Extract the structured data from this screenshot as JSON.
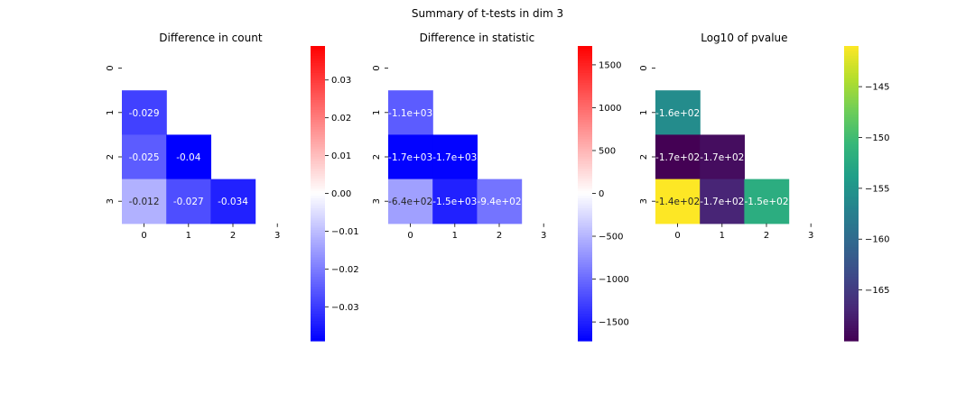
{
  "suptitle": "Summary of t-tests in dim 3",
  "chart_data": [
    {
      "type": "heatmap",
      "title": "Difference in count",
      "xlabel": "",
      "ylabel": "",
      "x_ticks": [
        "0",
        "1",
        "2",
        "3"
      ],
      "y_ticks": [
        "0",
        "1",
        "2",
        "3"
      ],
      "mask": "upper triangle and diagonal (empty)",
      "cells": [
        {
          "row": 1,
          "col": 0,
          "value": -0.029,
          "label": "-0.029"
        },
        {
          "row": 2,
          "col": 0,
          "value": -0.025,
          "label": "-0.025"
        },
        {
          "row": 2,
          "col": 1,
          "value": -0.04,
          "label": "-0.04"
        },
        {
          "row": 3,
          "col": 0,
          "value": -0.012,
          "label": "-0.012"
        },
        {
          "row": 3,
          "col": 1,
          "value": -0.027,
          "label": "-0.027"
        },
        {
          "row": 3,
          "col": 2,
          "value": -0.034,
          "label": "-0.034"
        }
      ],
      "colormap": "bwr",
      "vmin": -0.039,
      "vmax": 0.039,
      "colorbar_ticks": [
        {
          "value": 0.03,
          "label": "0.03"
        },
        {
          "value": 0.02,
          "label": "0.02"
        },
        {
          "value": 0.01,
          "label": "0.01"
        },
        {
          "value": 0.0,
          "label": "0.00"
        },
        {
          "value": -0.01,
          "label": "−0.01"
        },
        {
          "value": -0.02,
          "label": "−0.02"
        },
        {
          "value": -0.03,
          "label": "−0.03"
        }
      ]
    },
    {
      "type": "heatmap",
      "title": "Difference in statistic",
      "xlabel": "",
      "ylabel": "",
      "x_ticks": [
        "0",
        "1",
        "2",
        "3"
      ],
      "y_ticks": [
        "0",
        "1",
        "2",
        "3"
      ],
      "mask": "upper triangle and diagonal (empty)",
      "cells": [
        {
          "row": 1,
          "col": 0,
          "value": -1100,
          "label": "-1.1e+03"
        },
        {
          "row": 2,
          "col": 0,
          "value": -1700,
          "label": "-1.7e+03"
        },
        {
          "row": 2,
          "col": 1,
          "value": -1700,
          "label": "-1.7e+03"
        },
        {
          "row": 3,
          "col": 0,
          "value": -640,
          "label": "-6.4e+02"
        },
        {
          "row": 3,
          "col": 1,
          "value": -1500,
          "label": "-1.5e+03"
        },
        {
          "row": 3,
          "col": 2,
          "value": -940,
          "label": "-9.4e+02"
        }
      ],
      "colormap": "bwr",
      "vmin": -1720,
      "vmax": 1720,
      "colorbar_ticks": [
        {
          "value": 1500,
          "label": "1500"
        },
        {
          "value": 1000,
          "label": "1000"
        },
        {
          "value": 500,
          "label": "500"
        },
        {
          "value": 0,
          "label": "0"
        },
        {
          "value": -500,
          "label": "−500"
        },
        {
          "value": -1000,
          "label": "−1000"
        },
        {
          "value": -1500,
          "label": "−1500"
        }
      ]
    },
    {
      "type": "heatmap",
      "title": "Log10 of pvalue",
      "xlabel": "",
      "ylabel": "",
      "x_ticks": [
        "0",
        "1",
        "2",
        "3"
      ],
      "y_ticks": [
        "0",
        "1",
        "2",
        "3"
      ],
      "mask": "upper triangle and diagonal (empty)",
      "cells": [
        {
          "row": 1,
          "col": 0,
          "value": -156,
          "label": "-1.6e+02"
        },
        {
          "row": 2,
          "col": 0,
          "value": -170,
          "label": "-1.7e+02"
        },
        {
          "row": 2,
          "col": 1,
          "value": -169,
          "label": "-1.7e+02"
        },
        {
          "row": 3,
          "col": 0,
          "value": -141,
          "label": "-1.4e+02"
        },
        {
          "row": 3,
          "col": 1,
          "value": -167,
          "label": "-1.7e+02"
        },
        {
          "row": 3,
          "col": 2,
          "value": -152,
          "label": "-1.5e+02"
        }
      ],
      "colormap": "viridis",
      "vmin": -170,
      "vmax": -141,
      "colorbar_ticks": [
        {
          "value": -145,
          "label": "−145"
        },
        {
          "value": -150,
          "label": "−150"
        },
        {
          "value": -155,
          "label": "−155"
        },
        {
          "value": -160,
          "label": "−160"
        },
        {
          "value": -165,
          "label": "−165"
        }
      ]
    }
  ]
}
